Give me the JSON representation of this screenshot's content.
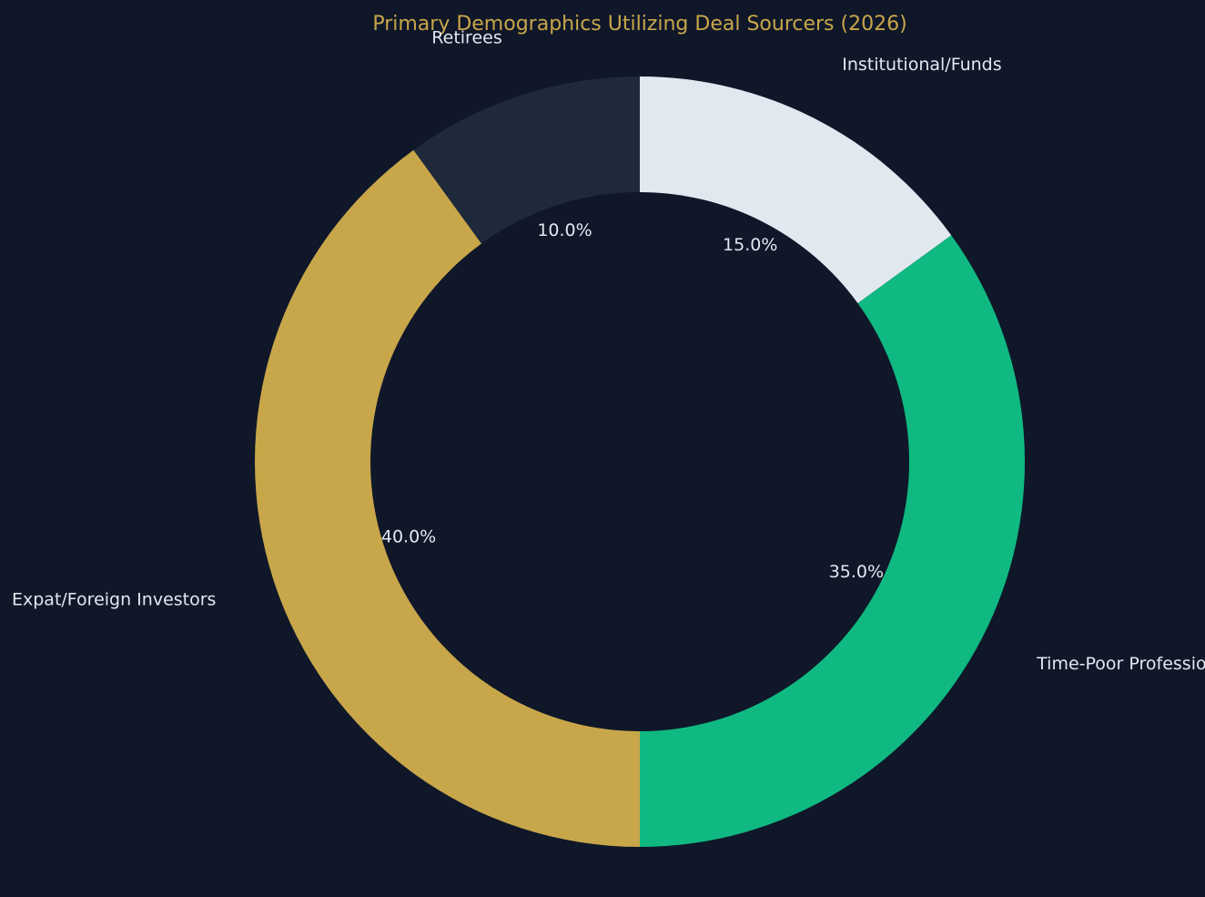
{
  "chart_data": {
    "type": "pie",
    "variant": "donut",
    "title": "Primary Demographics Utilizing Deal Sourcers (2026)",
    "start_angle_deg": 90,
    "direction": "clockwise",
    "slices": [
      {
        "label": "Institutional/Funds",
        "value": 15.0,
        "pct_label": "15.0%",
        "color": "#e2e8f0"
      },
      {
        "label": "Time-Poor Professionals",
        "value": 35.0,
        "pct_label": "35.0%",
        "color": "#10b981"
      },
      {
        "label": "Expat/Foreign Investors",
        "value": 40.0,
        "pct_label": "40.0%",
        "color": "#c8a64a"
      },
      {
        "label": "Retirees",
        "value": 10.0,
        "pct_label": "10.0%",
        "color": "#1e293b"
      }
    ],
    "colors": {
      "background": "#0f1729",
      "title": "#c8a64a",
      "text": "#e2e8f0"
    }
  }
}
